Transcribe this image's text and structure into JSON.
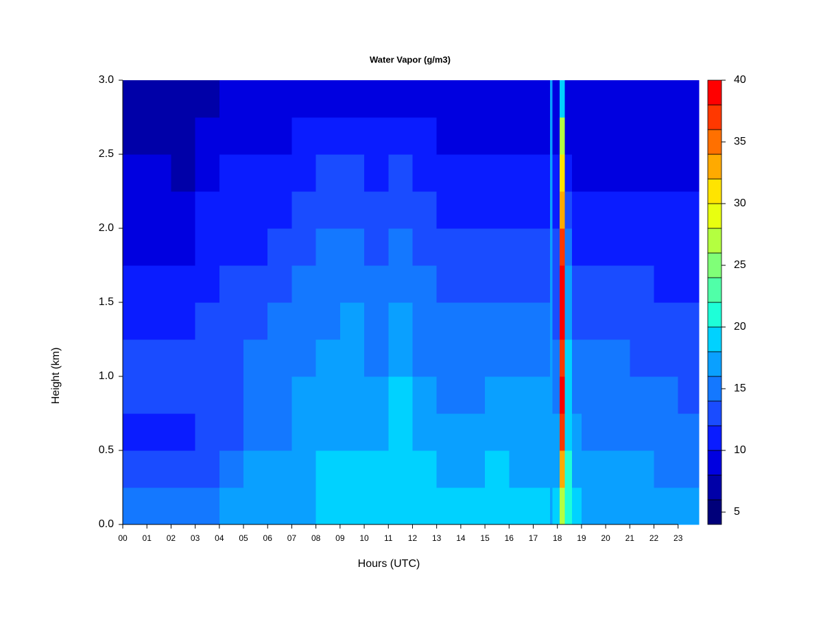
{
  "chart_data": {
    "type": "heatmap",
    "title": "Water Vapor (g/m3)",
    "x_label": "Hours (UTC)",
    "y_label": "Height (km)",
    "xbins": [
      0,
      1,
      2,
      3,
      4,
      5,
      6,
      7,
      8,
      9,
      10,
      11,
      12,
      13,
      14,
      15,
      16,
      17,
      17.7,
      17.8,
      18.1,
      18.3,
      18.6,
      19,
      20,
      21,
      22,
      23,
      23.86
    ],
    "ybins": [
      0,
      0.25,
      0.5,
      0.75,
      1,
      1.25,
      1.5,
      1.75,
      2,
      2.25,
      2.5,
      2.75,
      3
    ],
    "values": [
      [
        14,
        13,
        11,
        13,
        13,
        11,
        11,
        9,
        9,
        9,
        7,
        7
      ],
      [
        15,
        13,
        11,
        13,
        13,
        11,
        11,
        9,
        9,
        9,
        7,
        7
      ],
      [
        15,
        13,
        11,
        13,
        13,
        11,
        11,
        9,
        9,
        7,
        7,
        7
      ],
      [
        15,
        13,
        13,
        13,
        13,
        13,
        11,
        11,
        11,
        9,
        9,
        7
      ],
      [
        17,
        15,
        13,
        13,
        13,
        13,
        13,
        11,
        11,
        11,
        9,
        9
      ],
      [
        17,
        17,
        15,
        15,
        15,
        13,
        13,
        11,
        11,
        11,
        9,
        9
      ],
      [
        17,
        17,
        15,
        15,
        15,
        15,
        13,
        13,
        11,
        11,
        9,
        9
      ],
      [
        17,
        17,
        17,
        17,
        15,
        15,
        15,
        13,
        13,
        11,
        11,
        9
      ],
      [
        19,
        19,
        17,
        17,
        17,
        15,
        15,
        15,
        13,
        13,
        11,
        9
      ],
      [
        19,
        19,
        17,
        17,
        17,
        17,
        15,
        15,
        13,
        13,
        11,
        9
      ],
      [
        19,
        19,
        17,
        17,
        15,
        15,
        15,
        13,
        13,
        11,
        11,
        9
      ],
      [
        19,
        19,
        19,
        19,
        17,
        17,
        15,
        15,
        13,
        13,
        11,
        9
      ],
      [
        19,
        19,
        17,
        17,
        15,
        15,
        15,
        13,
        13,
        11,
        11,
        9
      ],
      [
        19,
        17,
        17,
        15,
        15,
        15,
        13,
        13,
        11,
        11,
        9,
        9
      ],
      [
        19,
        17,
        17,
        15,
        15,
        15,
        13,
        13,
        11,
        11,
        9,
        9
      ],
      [
        19,
        19,
        17,
        17,
        15,
        15,
        13,
        13,
        11,
        11,
        9,
        9
      ],
      [
        19,
        17,
        17,
        17,
        15,
        15,
        13,
        13,
        11,
        11,
        9,
        9
      ],
      [
        19,
        17,
        17,
        17,
        15,
        15,
        13,
        13,
        11,
        11,
        9,
        9
      ],
      [
        17,
        17,
        17,
        17,
        17,
        17,
        17,
        17,
        17,
        17,
        17,
        17
      ],
      [
        19,
        17,
        17,
        15,
        15,
        13,
        13,
        13,
        11,
        11,
        9,
        9
      ],
      [
        27,
        33,
        37,
        39,
        37,
        39,
        39,
        37,
        33,
        31,
        27,
        19
      ],
      [
        21,
        21,
        19,
        19,
        19,
        17,
        17,
        15,
        13,
        11,
        9,
        9
      ],
      [
        19,
        17,
        17,
        15,
        15,
        13,
        13,
        11,
        11,
        9,
        9,
        9
      ],
      [
        17,
        17,
        15,
        15,
        15,
        13,
        13,
        11,
        11,
        9,
        9,
        9
      ],
      [
        17,
        17,
        15,
        15,
        15,
        13,
        13,
        11,
        11,
        9,
        9,
        9
      ],
      [
        17,
        17,
        15,
        15,
        13,
        13,
        13,
        11,
        11,
        9,
        9,
        9
      ],
      [
        17,
        15,
        15,
        15,
        13,
        13,
        11,
        11,
        11,
        9,
        9,
        9
      ],
      [
        17,
        15,
        15,
        13,
        13,
        13,
        11,
        11,
        11,
        9,
        9,
        9
      ]
    ],
    "levels": [
      4,
      6,
      8,
      10,
      12,
      14,
      16,
      18,
      20,
      22,
      24,
      26,
      28,
      30,
      32,
      34,
      36,
      38,
      40
    ],
    "colors": [
      "#00007a",
      "#0000a8",
      "#0000e0",
      "#0a1cff",
      "#1a4cff",
      "#1478ff",
      "#0aa0ff",
      "#00d2ff",
      "#1effd8",
      "#50ffa8",
      "#80ff78",
      "#b4ff40",
      "#e8ff10",
      "#ffe400",
      "#ffaa00",
      "#ff7000",
      "#ff3800",
      "#ff0000",
      "#c00000",
      "#7a0000"
    ],
    "xlim": [
      0,
      23.86
    ],
    "ylim": [
      0,
      3
    ],
    "xticks": [
      {
        "value": 0,
        "label": "00"
      },
      {
        "value": 1,
        "label": "01"
      },
      {
        "value": 2,
        "label": "02"
      },
      {
        "value": 3,
        "label": "03"
      },
      {
        "value": 4,
        "label": "04"
      },
      {
        "value": 5,
        "label": "05"
      },
      {
        "value": 6,
        "label": "06"
      },
      {
        "value": 7,
        "label": "07"
      },
      {
        "value": 8,
        "label": "08"
      },
      {
        "value": 9,
        "label": "09"
      },
      {
        "value": 10,
        "label": "10"
      },
      {
        "value": 11,
        "label": "11"
      },
      {
        "value": 12,
        "label": "12"
      },
      {
        "value": 13,
        "label": "13"
      },
      {
        "value": 14,
        "label": "14"
      },
      {
        "value": 15,
        "label": "15"
      },
      {
        "value": 16,
        "label": "16"
      },
      {
        "value": 17,
        "label": "17"
      },
      {
        "value": 18,
        "label": "18"
      },
      {
        "value": 19,
        "label": "19"
      },
      {
        "value": 20,
        "label": "20"
      },
      {
        "value": 21,
        "label": "21"
      },
      {
        "value": 22,
        "label": "22"
      },
      {
        "value": 23,
        "label": "23"
      }
    ],
    "yticks": [
      {
        "value": 0,
        "label": "0.0"
      },
      {
        "value": 0.5,
        "label": "0.5"
      },
      {
        "value": 1,
        "label": "1.0"
      },
      {
        "value": 1.5,
        "label": "1.5"
      },
      {
        "value": 2,
        "label": "2.0"
      },
      {
        "value": 2.5,
        "label": "2.5"
      },
      {
        "value": 3,
        "label": "3.0"
      }
    ],
    "colorbar_ticks": [
      5,
      10,
      15,
      20,
      25,
      30,
      35,
      40
    ]
  }
}
